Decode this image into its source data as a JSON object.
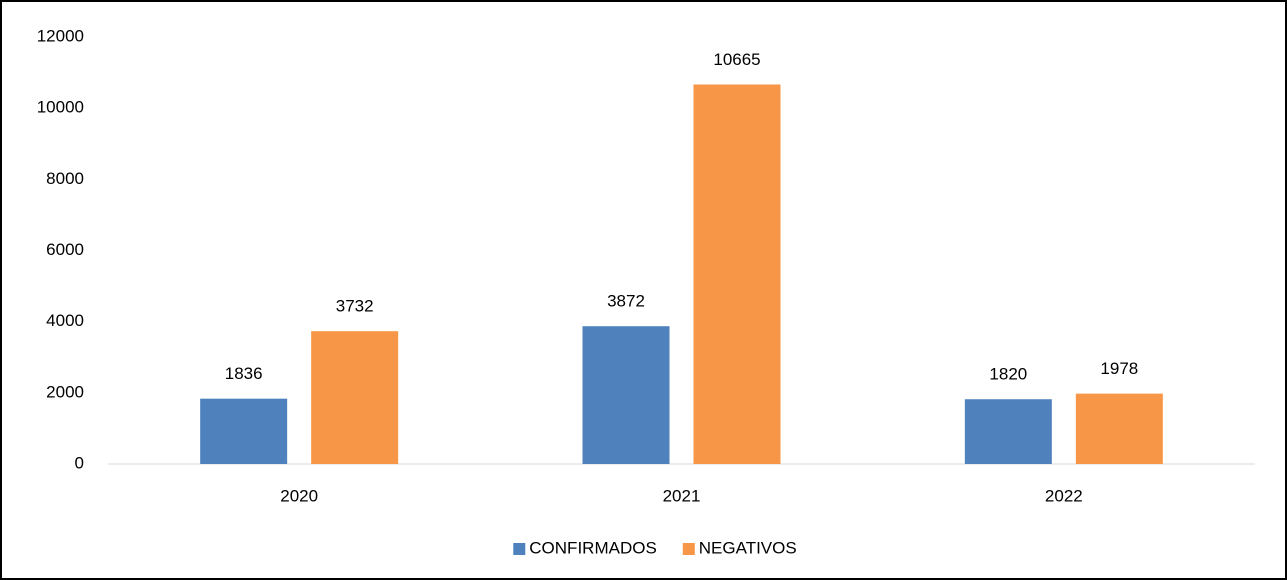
{
  "chart_data": {
    "type": "bar",
    "categories": [
      "2020",
      "2021",
      "2022"
    ],
    "series": [
      {
        "name": "CONFIRMADOS",
        "color": "#4f81bd",
        "values": [
          1836,
          3872,
          1820
        ]
      },
      {
        "name": "NEGATIVOS",
        "color": "#f79646",
        "values": [
          3732,
          10665,
          1978
        ]
      }
    ],
    "ylim": [
      0,
      12000
    ],
    "yticks": [
      0,
      2000,
      4000,
      6000,
      8000,
      10000,
      12000
    ],
    "grid": false,
    "legend": "bottom"
  }
}
